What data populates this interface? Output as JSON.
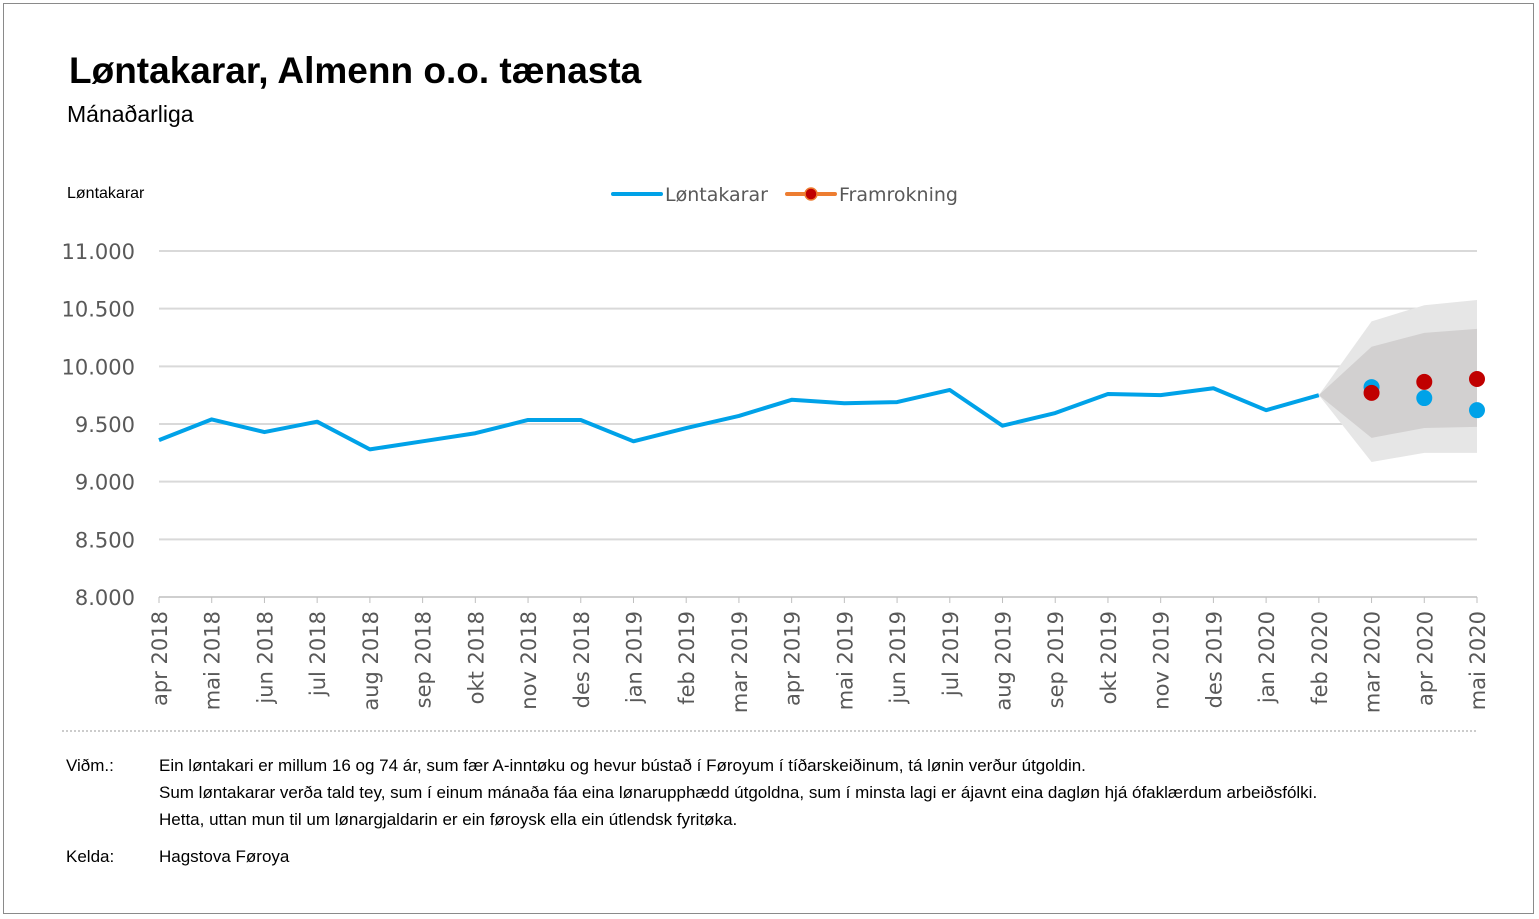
{
  "title": "Løntakarar, Almenn o.o. tænasta",
  "subtitle": "Mánaðarliga",
  "chart_data": {
    "type": "line",
    "ylabel": "Løntakarar",
    "ylim": [
      8000,
      11000
    ],
    "yticks": [
      "8.000",
      "8.500",
      "9.000",
      "9.500",
      "10.000",
      "10.500",
      "11.000"
    ],
    "ytick_values": [
      8000,
      8500,
      9000,
      9500,
      10000,
      10500,
      11000
    ],
    "grid": true,
    "legend_position": "top-center",
    "categories": [
      "apr 2018",
      "mai 2018",
      "jun 2018",
      "jul 2018",
      "aug 2018",
      "sep 2018",
      "okt 2018",
      "nov 2018",
      "des 2018",
      "jan 2019",
      "feb 2019",
      "mar 2019",
      "apr 2019",
      "mai 2019",
      "jun 2019",
      "jul 2019",
      "aug 2019",
      "sep 2019",
      "okt 2019",
      "nov 2019",
      "des 2019",
      "jan 2020",
      "feb 2020",
      "mar 2020",
      "apr 2020",
      "mai 2020"
    ],
    "series": [
      {
        "name": "Løntakarar",
        "color": "#00a2e8",
        "style": "line",
        "values": [
          9360,
          9540,
          9430,
          9520,
          9280,
          9350,
          9420,
          9535,
          9535,
          9350,
          9465,
          9570,
          9710,
          9680,
          9690,
          9795,
          9485,
          9595,
          9760,
          9750,
          9810,
          9620,
          9750,
          null,
          null,
          null
        ]
      },
      {
        "name": "",
        "color": "#00a2e8",
        "style": "points",
        "values": [
          null,
          null,
          null,
          null,
          null,
          null,
          null,
          null,
          null,
          null,
          null,
          null,
          null,
          null,
          null,
          null,
          null,
          null,
          null,
          null,
          null,
          null,
          null,
          9820,
          9725,
          9620
        ]
      },
      {
        "name": "Framrokning",
        "color": "#c00000",
        "legend_line_color": "#ed7d31",
        "style": "points",
        "values": [
          null,
          null,
          null,
          null,
          null,
          null,
          null,
          null,
          null,
          null,
          null,
          null,
          null,
          null,
          null,
          null,
          null,
          null,
          null,
          null,
          null,
          null,
          null,
          9770,
          9865,
          9890
        ]
      }
    ],
    "bands": [
      {
        "color": "#e6e6e6",
        "lower": [
          9750,
          9170,
          9250,
          9250
        ],
        "upper": [
          9750,
          10390,
          10530,
          10575
        ],
        "from": "feb 2020"
      },
      {
        "color": "#d2d0d0",
        "lower": [
          9750,
          9380,
          9465,
          9475
        ],
        "upper": [
          9750,
          10170,
          10290,
          10325
        ],
        "from": "feb 2020"
      }
    ]
  },
  "notes": {
    "note_label": "Viðm.:",
    "note_lines": [
      "Ein løntakari er millum 16 og 74 ár, sum fær A-inntøku og hevur bústað í Føroyum í tíðarskeiðinum, tá lønin verður útgoldin.",
      "Sum løntakarar verða tald tey, sum í einum mánaða fáa eina lønarupphædd útgoldna, sum í minsta lagi er ájavnt eina dagløn hjá ófaklærdum arbeiðsfólki.",
      "Hetta, uttan mun til um lønargjaldarin er ein føroysk ella ein útlendsk fyritøka."
    ],
    "source_label": "Kelda:",
    "source": "Hagstova Føroya"
  }
}
